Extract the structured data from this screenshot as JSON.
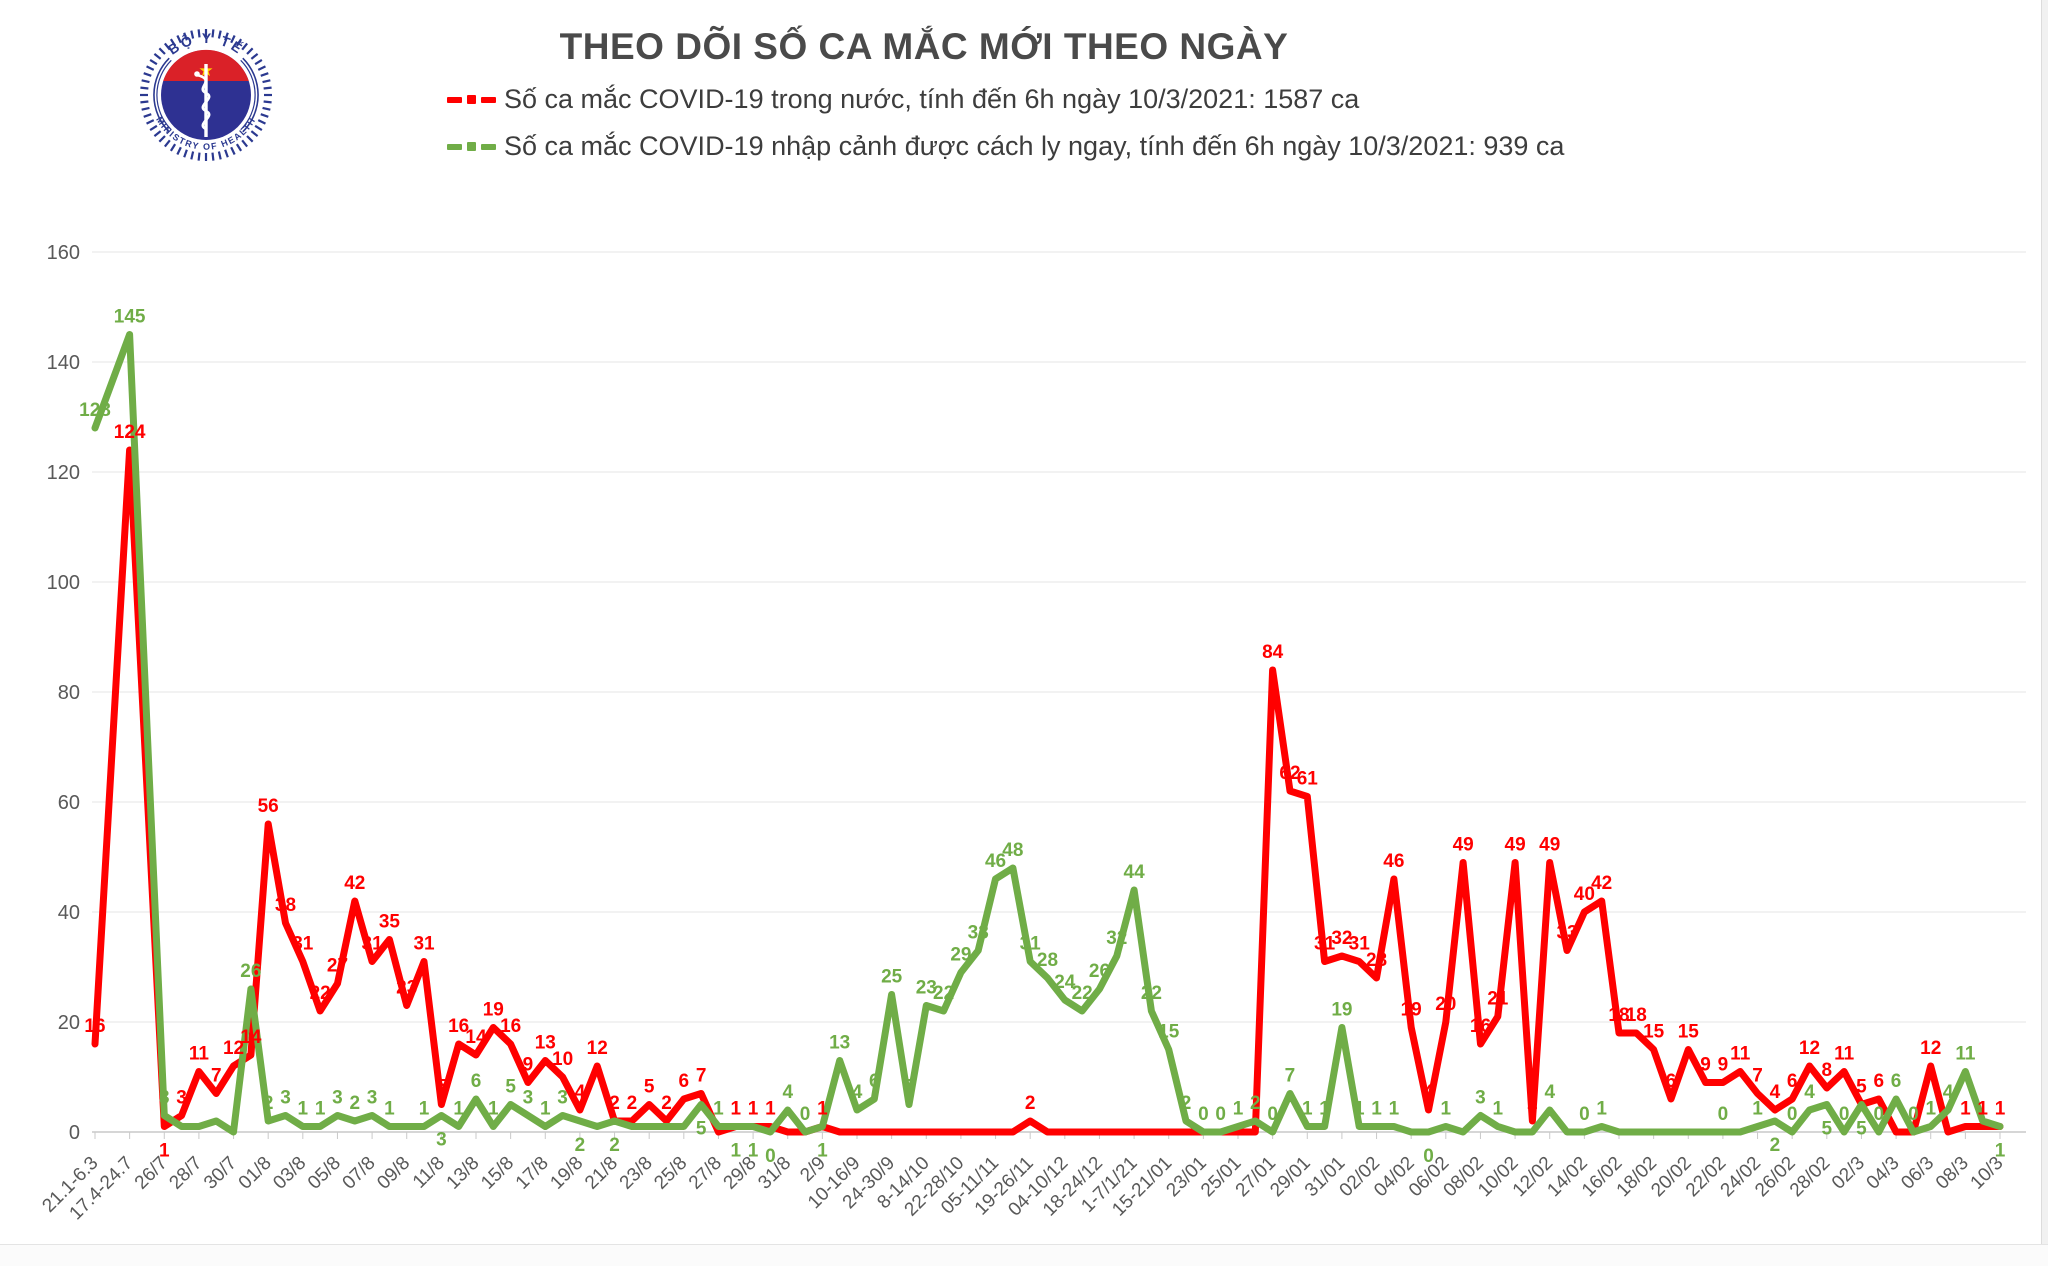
{
  "header": {
    "title": "THEO DÕI SỐ CA MẮC MỚI THEO NGÀY",
    "legend": [
      {
        "label": "Số ca mắc COVID-19 trong nước, tính đến 6h ngày 10/3/2021: 1587 ca",
        "color": "#ff0000"
      },
      {
        "label": "Số ca mắc COVID-19 nhập cảnh được cách ly ngay, tính đến 6h ngày 10/3/2021: 939 ca",
        "color": "#70ad47"
      }
    ]
  },
  "logo": {
    "top_text": "BỘ Y TẾ",
    "bottom_text": "MINISTRY OF HEALTH",
    "ring_color": "#2b3990",
    "disc_color": "#2e3192",
    "band_color": "#da2128",
    "star_color": "#ffd400"
  },
  "chart_data": {
    "type": "line",
    "title": "THEO DÕI SỐ CA MẮC MỚI THEO NGÀY",
    "ylim": [
      0,
      160
    ],
    "ytick_step": 20,
    "grid": true,
    "legend_position": "top",
    "xticklabels": [
      "21.1-6.3",
      "17.4-24.7",
      "26/7",
      "28/7",
      "30/7",
      "01/8",
      "03/8",
      "05/8",
      "07/8",
      "09/8",
      "11/8",
      "13/8",
      "15/8",
      "17/8",
      "19/8",
      "21/8",
      "23/8",
      "25/8",
      "27/8",
      "29/8",
      "31/8",
      "2/9",
      "10-16/9",
      "24-30/9",
      "8-14/10",
      "22-28/10",
      "05-11/11",
      "19-26/11",
      "04-10/12",
      "18-24/12",
      "1-7/1/21",
      "15-21/01",
      "23/01",
      "25/01",
      "27/01",
      "29/01",
      "31/01",
      "02/02",
      "04/02",
      "06/02",
      "08/02",
      "10/02",
      "12/02",
      "14/02",
      "16/02",
      "18/02",
      "20/02",
      "22/02",
      "24/02",
      "26/02",
      "28/02",
      "02/3",
      "04/3",
      "06/3",
      "08/3",
      "10/3"
    ],
    "series": [
      {
        "name": "Số ca mắc COVID-19 trong nước",
        "color": "#ff0000",
        "total": 1587,
        "points": [
          [
            0,
            16,
            1
          ],
          [
            1,
            124,
            1
          ],
          [
            2,
            1,
            1
          ],
          [
            2.5,
            3,
            1
          ],
          [
            3,
            11,
            1
          ],
          [
            3.5,
            7,
            1
          ],
          [
            4,
            12,
            1
          ],
          [
            4.5,
            14,
            1
          ],
          [
            5,
            56,
            1
          ],
          [
            5.5,
            38,
            1
          ],
          [
            6,
            31,
            1
          ],
          [
            6.5,
            22,
            1
          ],
          [
            7,
            27,
            1
          ],
          [
            7.5,
            42,
            1
          ],
          [
            8,
            31,
            1
          ],
          [
            8.5,
            35,
            1
          ],
          [
            9,
            23,
            1
          ],
          [
            9.5,
            31,
            1
          ],
          [
            10,
            5,
            1
          ],
          [
            10.5,
            16,
            1
          ],
          [
            11,
            14,
            1
          ],
          [
            11.5,
            19,
            1
          ],
          [
            12,
            16,
            1
          ],
          [
            12.5,
            9,
            1
          ],
          [
            13,
            13,
            1
          ],
          [
            13.5,
            10,
            1
          ],
          [
            14,
            4,
            1
          ],
          [
            14.5,
            12,
            1
          ],
          [
            15,
            2,
            1
          ],
          [
            15.5,
            2,
            1
          ],
          [
            16,
            5,
            1
          ],
          [
            16.5,
            2,
            1
          ],
          [
            17,
            6,
            1
          ],
          [
            17.5,
            7,
            1
          ],
          [
            18,
            0,
            0
          ],
          [
            18.5,
            1,
            1
          ],
          [
            19,
            1,
            1
          ],
          [
            19.5,
            1,
            1
          ],
          [
            20,
            0,
            0
          ],
          [
            20.5,
            0,
            0
          ],
          [
            21,
            1,
            1
          ],
          [
            21.5,
            0,
            0
          ],
          [
            22,
            0,
            0
          ],
          [
            22.5,
            0,
            0
          ],
          [
            23,
            0,
            0
          ],
          [
            23.5,
            0,
            0
          ],
          [
            24,
            0,
            0
          ],
          [
            24.5,
            0,
            0
          ],
          [
            25,
            0,
            0
          ],
          [
            25.5,
            0,
            0
          ],
          [
            26,
            0,
            0
          ],
          [
            26.5,
            0,
            0
          ],
          [
            27,
            2,
            1
          ],
          [
            27.5,
            0,
            0
          ],
          [
            28,
            0,
            0
          ],
          [
            28.5,
            0,
            0
          ],
          [
            29,
            0,
            0
          ],
          [
            29.5,
            0,
            0
          ],
          [
            30,
            0,
            0
          ],
          [
            30.5,
            0,
            0
          ],
          [
            31,
            0,
            0
          ],
          [
            31.5,
            0,
            0
          ],
          [
            32,
            0,
            0
          ],
          [
            32.5,
            0,
            0
          ],
          [
            33,
            0,
            0
          ],
          [
            33.5,
            0,
            0
          ],
          [
            34,
            84,
            1
          ],
          [
            34.5,
            62,
            1
          ],
          [
            35,
            61,
            1
          ],
          [
            35.5,
            31,
            1
          ],
          [
            36,
            32,
            1
          ],
          [
            36.5,
            31,
            1
          ],
          [
            37,
            28,
            1
          ],
          [
            37.5,
            46,
            1
          ],
          [
            38,
            19,
            1
          ],
          [
            38.5,
            4,
            1
          ],
          [
            39,
            20,
            1
          ],
          [
            39.5,
            49,
            1
          ],
          [
            40,
            16,
            1
          ],
          [
            40.5,
            21,
            1
          ],
          [
            41,
            49,
            1
          ],
          [
            41.5,
            2,
            1
          ],
          [
            42,
            49,
            1
          ],
          [
            42.5,
            33,
            1
          ],
          [
            43,
            40,
            1
          ],
          [
            43.5,
            42,
            1
          ],
          [
            44,
            18,
            1
          ],
          [
            44.5,
            18,
            1
          ],
          [
            45,
            15,
            1
          ],
          [
            45.5,
            6,
            1
          ],
          [
            46,
            15,
            1
          ],
          [
            46.5,
            9,
            1
          ],
          [
            47,
            9,
            1
          ],
          [
            47.5,
            11,
            1
          ],
          [
            48,
            7,
            1
          ],
          [
            48.5,
            4,
            1
          ],
          [
            49,
            6,
            1
          ],
          [
            49.5,
            12,
            1
          ],
          [
            50,
            8,
            1
          ],
          [
            50.5,
            11,
            1
          ],
          [
            51,
            5,
            1
          ],
          [
            51.5,
            6,
            1
          ],
          [
            52,
            0,
            0
          ],
          [
            52.5,
            0,
            0
          ],
          [
            53,
            12,
            1
          ],
          [
            53.5,
            0,
            0
          ],
          [
            54,
            1,
            1
          ],
          [
            54.5,
            1,
            1
          ],
          [
            55,
            1,
            1
          ]
        ]
      },
      {
        "name": "Số ca mắc COVID-19 nhập cảnh được cách ly ngay",
        "color": "#70ad47",
        "total": 939,
        "points": [
          [
            0,
            128,
            1
          ],
          [
            1,
            145,
            1
          ],
          [
            2,
            3,
            1
          ],
          [
            2.5,
            1,
            0
          ],
          [
            3,
            1,
            0
          ],
          [
            3.5,
            2,
            0
          ],
          [
            4,
            0,
            0
          ],
          [
            4.5,
            26,
            1
          ],
          [
            5,
            2,
            1
          ],
          [
            5.5,
            3,
            1
          ],
          [
            6,
            1,
            1
          ],
          [
            6.5,
            1,
            1
          ],
          [
            7,
            3,
            1
          ],
          [
            7.5,
            2,
            1
          ],
          [
            8,
            3,
            1
          ],
          [
            8.5,
            1,
            1
          ],
          [
            9,
            1,
            0
          ],
          [
            9.5,
            1,
            1
          ],
          [
            10,
            3,
            1
          ],
          [
            10.5,
            1,
            1
          ],
          [
            11,
            6,
            1
          ],
          [
            11.5,
            1,
            1
          ],
          [
            12,
            5,
            1
          ],
          [
            12.5,
            3,
            1
          ],
          [
            13,
            1,
            1
          ],
          [
            13.5,
            3,
            1
          ],
          [
            14,
            2,
            1
          ],
          [
            14.5,
            1,
            0
          ],
          [
            15,
            2,
            1
          ],
          [
            15.5,
            1,
            0
          ],
          [
            16,
            1,
            0
          ],
          [
            16.5,
            1,
            0
          ],
          [
            17,
            1,
            0
          ],
          [
            17.5,
            5,
            1
          ],
          [
            18,
            1,
            1
          ],
          [
            18.5,
            1,
            1
          ],
          [
            19,
            1,
            1
          ],
          [
            19.5,
            0,
            1
          ],
          [
            20,
            4,
            1
          ],
          [
            20.5,
            0,
            1
          ],
          [
            21,
            1,
            1
          ],
          [
            21.5,
            13,
            1
          ],
          [
            22,
            4,
            1
          ],
          [
            22.5,
            6,
            1
          ],
          [
            23,
            25,
            1
          ],
          [
            23.5,
            5,
            1
          ],
          [
            24,
            23,
            1
          ],
          [
            24.5,
            22,
            1
          ],
          [
            25,
            29,
            1
          ],
          [
            25.5,
            33,
            1
          ],
          [
            26,
            46,
            1
          ],
          [
            26.5,
            48,
            1
          ],
          [
            27,
            31,
            1
          ],
          [
            27.5,
            28,
            1
          ],
          [
            28,
            24,
            1
          ],
          [
            28.5,
            22,
            1
          ],
          [
            29,
            26,
            1
          ],
          [
            29.5,
            32,
            1
          ],
          [
            30,
            44,
            1
          ],
          [
            30.5,
            22,
            1
          ],
          [
            31,
            15,
            1
          ],
          [
            31.5,
            2,
            1
          ],
          [
            32,
            0,
            1
          ],
          [
            32.5,
            0,
            1
          ],
          [
            33,
            1,
            1
          ],
          [
            33.5,
            2,
            1
          ],
          [
            34,
            0,
            1
          ],
          [
            34.5,
            7,
            1
          ],
          [
            35,
            1,
            1
          ],
          [
            35.5,
            1,
            1
          ],
          [
            36,
            19,
            1
          ],
          [
            36.5,
            1,
            1
          ],
          [
            37,
            1,
            1
          ],
          [
            37.5,
            1,
            1
          ],
          [
            38,
            0,
            0
          ],
          [
            38.5,
            0,
            1
          ],
          [
            39,
            1,
            1
          ],
          [
            39.5,
            0,
            0
          ],
          [
            40,
            3,
            1
          ],
          [
            40.5,
            1,
            1
          ],
          [
            41,
            0,
            0
          ],
          [
            41.5,
            0,
            0
          ],
          [
            42,
            4,
            1
          ],
          [
            42.5,
            0,
            0
          ],
          [
            43,
            0,
            1
          ],
          [
            43.5,
            1,
            1
          ],
          [
            44,
            0,
            0
          ],
          [
            44.5,
            0,
            0
          ],
          [
            45,
            0,
            0
          ],
          [
            45.5,
            0,
            0
          ],
          [
            46,
            0,
            0
          ],
          [
            46.5,
            0,
            0
          ],
          [
            47,
            0,
            1
          ],
          [
            47.5,
            0,
            0
          ],
          [
            48,
            1,
            1
          ],
          [
            48.5,
            2,
            1
          ],
          [
            49,
            0,
            1
          ],
          [
            49.5,
            4,
            1
          ],
          [
            50,
            5,
            1
          ],
          [
            50.5,
            0,
            1
          ],
          [
            51,
            5,
            1
          ],
          [
            51.5,
            0,
            1
          ],
          [
            52,
            6,
            1
          ],
          [
            52.5,
            0,
            1
          ],
          [
            53,
            1,
            1
          ],
          [
            53.5,
            4,
            1
          ],
          [
            54,
            11,
            1
          ],
          [
            54.5,
            2,
            0
          ],
          [
            55,
            1,
            1
          ]
        ]
      }
    ]
  }
}
